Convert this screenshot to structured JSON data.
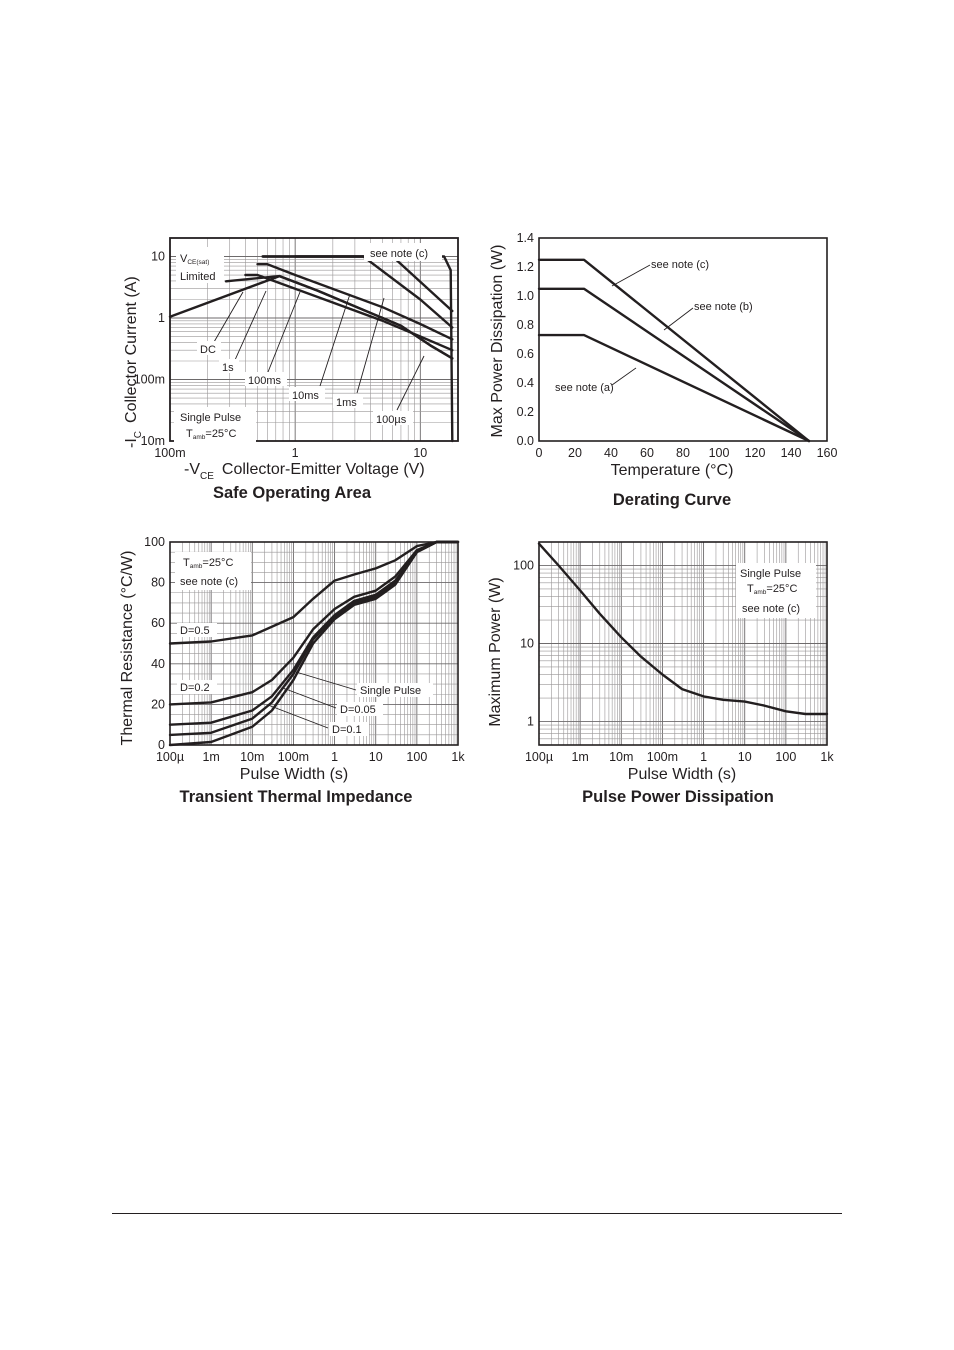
{
  "charts": [
    {
      "id": "soa",
      "type": "line",
      "title": "Safe Operating Area",
      "xlabel_prefix": "-V",
      "xlabel_sub": "CE",
      "xlabel_text": "Collector-Emitter Voltage (V)",
      "ylabel_prefix": "-I",
      "ylabel_sub": "C",
      "ylabel_text": "Collector Current (A)",
      "x_scale": "log",
      "y_scale": "log",
      "xlim": [
        0.1,
        20
      ],
      "ylim": [
        0.01,
        20
      ],
      "grid": true,
      "x_ticks": [
        {
          "v": 0.1,
          "label": "100m"
        },
        {
          "v": 1,
          "label": "1"
        },
        {
          "v": 10,
          "label": "10"
        }
      ],
      "y_ticks": [
        {
          "v": 0.01,
          "label": "10m"
        },
        {
          "v": 0.1,
          "label": "100m"
        },
        {
          "v": 1,
          "label": "1"
        },
        {
          "v": 10,
          "label": "10"
        }
      ],
      "series": [
        {
          "name": "DC",
          "x": [
            0.1,
            0.75,
            1.5,
            7,
            12,
            18
          ],
          "y": [
            1.05,
            4.8,
            2.8,
            0.75,
            0.36,
            0.22
          ]
        },
        {
          "name": "1s",
          "x": [
            0.28,
            0.75,
            1.5,
            7,
            12,
            18
          ],
          "y": [
            3.95,
            4.8,
            2.8,
            0.75,
            0.36,
            0.22
          ]
        },
        {
          "name": "100ms",
          "x": [
            0.4,
            0.5,
            1,
            5,
            10,
            18
          ],
          "y": [
            5,
            5,
            3,
            0.9,
            0.5,
            0.3
          ]
        },
        {
          "name": "10ms",
          "x": [
            0.5,
            0.6,
            1,
            5,
            10,
            18
          ],
          "y": [
            7.5,
            7.5,
            5,
            1.5,
            0.8,
            0.45
          ]
        },
        {
          "name": "1ms",
          "x": [
            0.55,
            3.5,
            10,
            18
          ],
          "y": [
            10,
            10,
            2,
            0.7
          ]
        },
        {
          "name": "100µs",
          "x": [
            0.55,
            6,
            18
          ],
          "y": [
            10,
            10,
            1.3
          ]
        },
        {
          "name": "",
          "x": [
            1.0,
            15.5,
            17.5,
            18
          ],
          "y": [
            10,
            10,
            6,
            0.01
          ]
        }
      ],
      "annotations": {
        "vce_prefix": "V",
        "vce_sub": "CE(sat)",
        "limited": "Limited",
        "note": "see note (c)",
        "single_pulse": "Single Pulse",
        "tamb_prefix": "T",
        "tamb_sub": "amb",
        "tamb_suffix": "=25°C"
      }
    },
    {
      "id": "derating",
      "type": "line",
      "title": "Derating Curve",
      "xlabel": "Temperature (°C)",
      "ylabel": "Max Power Dissipation (W)",
      "x_scale": "linear",
      "y_scale": "linear",
      "xlim": [
        0,
        160
      ],
      "ylim": [
        0,
        1.4
      ],
      "grid": false,
      "x_ticks": [
        {
          "v": 0,
          "label": "0"
        },
        {
          "v": 20,
          "label": "20"
        },
        {
          "v": 40,
          "label": "40"
        },
        {
          "v": 60,
          "label": "60"
        },
        {
          "v": 80,
          "label": "80"
        },
        {
          "v": 100,
          "label": "100"
        },
        {
          "v": 120,
          "label": "120"
        },
        {
          "v": 140,
          "label": "140"
        },
        {
          "v": 160,
          "label": "160"
        }
      ],
      "y_ticks": [
        {
          "v": 0,
          "label": "0.0"
        },
        {
          "v": 0.2,
          "label": "0.2"
        },
        {
          "v": 0.4,
          "label": "0.4"
        },
        {
          "v": 0.6,
          "label": "0.6"
        },
        {
          "v": 0.8,
          "label": "0.8"
        },
        {
          "v": 1.0,
          "label": "1.0"
        },
        {
          "v": 1.2,
          "label": "1.2"
        },
        {
          "v": 1.4,
          "label": "1.4"
        }
      ],
      "series": [
        {
          "name": "see note (c)",
          "x": [
            0,
            25,
            150
          ],
          "y": [
            1.25,
            1.25,
            0
          ]
        },
        {
          "name": "see note (b)",
          "x": [
            0,
            25,
            150
          ],
          "y": [
            1.05,
            1.05,
            0
          ]
        },
        {
          "name": "see note (a)",
          "x": [
            0,
            25,
            150
          ],
          "y": [
            0.73,
            0.73,
            0
          ]
        }
      ]
    },
    {
      "id": "thermal",
      "type": "line",
      "title": "Transient Thermal Impedance",
      "xlabel": "Pulse Width (s)",
      "ylabel": "Thermal Resistance (°C/W)",
      "x_scale": "log",
      "y_scale": "linear",
      "xlim": [
        0.0001,
        1000
      ],
      "ylim": [
        0,
        100
      ],
      "grid": true,
      "x_ticks": [
        {
          "v": 0.0001,
          "label": "100µ"
        },
        {
          "v": 0.001,
          "label": "1m"
        },
        {
          "v": 0.01,
          "label": "10m"
        },
        {
          "v": 0.1,
          "label": "100m"
        },
        {
          "v": 1,
          "label": "1"
        },
        {
          "v": 10,
          "label": "10"
        },
        {
          "v": 100,
          "label": "100"
        },
        {
          "v": 1000,
          "label": "1k"
        }
      ],
      "y_ticks": [
        {
          "v": 0,
          "label": "0"
        },
        {
          "v": 20,
          "label": "20"
        },
        {
          "v": 40,
          "label": "40"
        },
        {
          "v": 60,
          "label": "60"
        },
        {
          "v": 80,
          "label": "80"
        },
        {
          "v": 100,
          "label": "100"
        }
      ],
      "series": [
        {
          "name": "D=0.5",
          "x": [
            0.0001,
            0.001,
            0.01,
            0.1,
            0.3,
            1,
            3,
            10,
            30,
            100,
            300,
            1000
          ],
          "y": [
            50,
            51,
            54,
            63,
            72,
            81,
            84,
            87,
            91,
            98,
            100,
            100
          ]
        },
        {
          "name": "D=0.2",
          "x": [
            0.0001,
            0.001,
            0.01,
            0.03,
            0.1,
            0.3,
            1,
            3,
            10,
            30,
            100,
            300,
            1000
          ],
          "y": [
            20,
            21,
            26,
            32,
            43,
            57,
            67,
            73,
            76,
            83,
            96,
            100,
            100
          ]
        },
        {
          "name": "D=0.1",
          "x": [
            0.0001,
            0.001,
            0.01,
            0.03,
            0.1,
            0.3,
            1,
            3,
            10,
            30,
            100,
            300,
            1000
          ],
          "y": [
            10,
            11,
            17,
            24,
            37,
            53,
            64,
            71,
            74,
            81,
            95,
            100,
            100
          ]
        },
        {
          "name": "D=0.05",
          "x": [
            0.0001,
            0.001,
            0.01,
            0.03,
            0.1,
            0.3,
            1,
            3,
            10,
            30,
            100,
            300,
            1000
          ],
          "y": [
            5,
            6,
            13,
            21,
            35,
            52,
            63,
            70,
            73,
            80,
            95,
            100,
            100
          ]
        },
        {
          "name": "Single Pulse",
          "x": [
            0.0001,
            0.001,
            0.01,
            0.03,
            0.1,
            0.3,
            1,
            3,
            10,
            30,
            100,
            300,
            1000
          ],
          "y": [
            0,
            1.5,
            9,
            17,
            32,
            50,
            62,
            69,
            72,
            79,
            95,
            100,
            100
          ]
        }
      ],
      "annotations": {
        "tamb_prefix": "T",
        "tamb_sub": "amb",
        "tamb_suffix": "=25°C",
        "note": "see note (c)"
      }
    },
    {
      "id": "pulse",
      "type": "line",
      "title": "Pulse Power Dissipation",
      "xlabel": "Pulse Width (s)",
      "ylabel": "Maximum Power (W)",
      "x_scale": "log",
      "y_scale": "log",
      "xlim": [
        0.0001,
        1000
      ],
      "ylim": [
        0.5,
        200
      ],
      "grid": true,
      "x_ticks": [
        {
          "v": 0.0001,
          "label": "100µ"
        },
        {
          "v": 0.001,
          "label": "1m"
        },
        {
          "v": 0.01,
          "label": "10m"
        },
        {
          "v": 0.1,
          "label": "100m"
        },
        {
          "v": 1,
          "label": "1"
        },
        {
          "v": 10,
          "label": "10"
        },
        {
          "v": 100,
          "label": "100"
        },
        {
          "v": 1000,
          "label": "1k"
        }
      ],
      "y_ticks": [
        {
          "v": 1,
          "label": "1"
        },
        {
          "v": 10,
          "label": "10"
        },
        {
          "v": 100,
          "label": "100"
        }
      ],
      "series": [
        {
          "name": "",
          "x": [
            0.0001,
            0.0003,
            0.001,
            0.003,
            0.01,
            0.03,
            0.1,
            0.3,
            1,
            3,
            10,
            30,
            100,
            300,
            1000
          ],
          "y": [
            190,
            100,
            48,
            24,
            12,
            6.8,
            4,
            2.6,
            2.1,
            1.9,
            1.8,
            1.6,
            1.35,
            1.25,
            1.25
          ]
        }
      ],
      "annotations": {
        "single_pulse": "Single Pulse",
        "tamb_prefix": "T",
        "tamb_sub": "amb",
        "tamb_suffix": "=25°C",
        "note": "see note (c)"
      }
    }
  ]
}
